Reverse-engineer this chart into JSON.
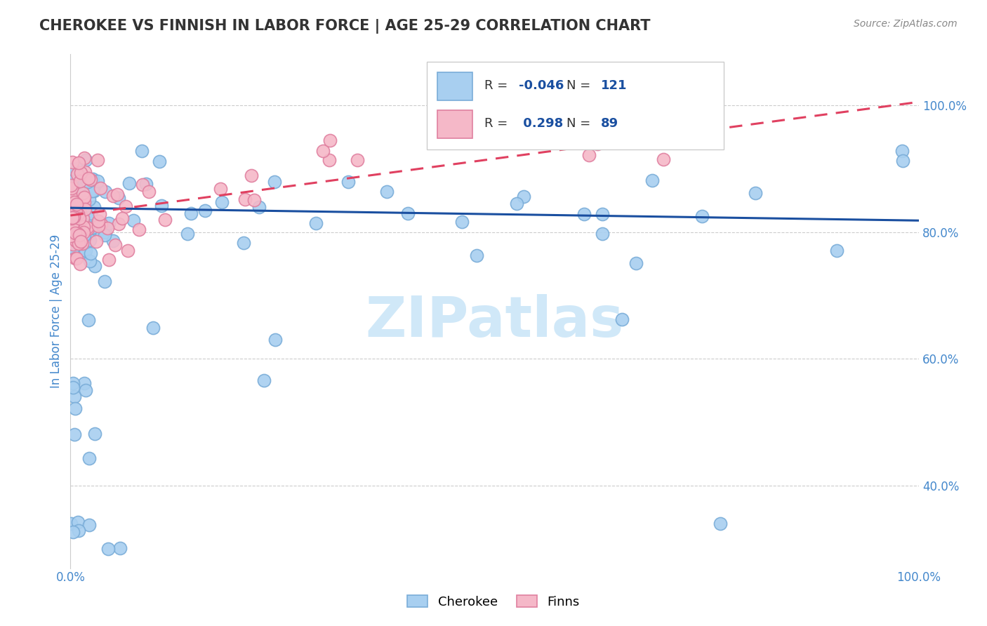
{
  "title": "CHEROKEE VS FINNISH IN LABOR FORCE | AGE 25-29 CORRELATION CHART",
  "source_text": "Source: ZipAtlas.com",
  "ylabel": "In Labor Force | Age 25-29",
  "xlim": [
    0.0,
    1.0
  ],
  "ylim": [
    0.27,
    1.08
  ],
  "cherokee_R": -0.046,
  "cherokee_N": 121,
  "finns_R": 0.298,
  "finns_N": 89,
  "cherokee_color": "#a8cff0",
  "cherokee_edge_color": "#7aadd8",
  "finns_color": "#f5b8c8",
  "finns_edge_color": "#e080a0",
  "trend_cherokee_color": "#1a4fa0",
  "trend_finns_color": "#e04060",
  "grid_color": "#cccccc",
  "background_color": "#ffffff",
  "title_color": "#333333",
  "tick_label_color": "#4488cc",
  "watermark_color": "#d0e8f8",
  "legend_edge_color": "#cccccc",
  "source_color": "#888888"
}
